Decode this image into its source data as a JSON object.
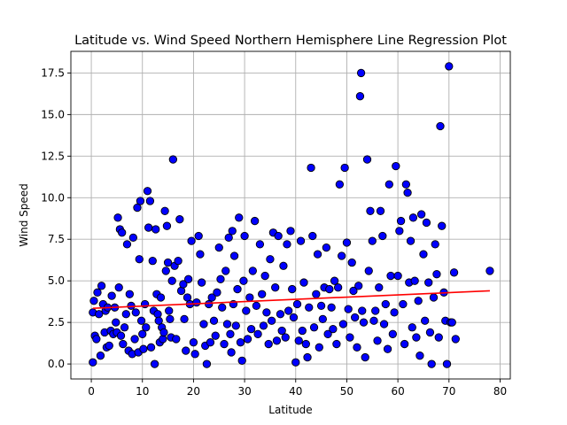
{
  "chart_data": {
    "type": "scatter",
    "title": "Latitude vs. Wind Speed Northern Hemisphere Line Regression Plot",
    "xlabel": "Latitude",
    "ylabel": "Wind Speed",
    "xlim": [
      -4,
      82
    ],
    "ylim": [
      -0.9,
      18.8
    ],
    "xticks": [
      0,
      10,
      20,
      30,
      40,
      50,
      60,
      70,
      80
    ],
    "yticks": [
      0.0,
      2.5,
      5.0,
      7.5,
      10.0,
      12.5,
      15.0,
      17.5
    ],
    "ytick_labels": [
      "0.0",
      "2.5",
      "5.0",
      "7.5",
      "10.0",
      "12.5",
      "15.0",
      "17.5"
    ],
    "grid": true,
    "marker_color": "#0000ff",
    "marker_edge": "#000000",
    "regression_color": "#ff0000",
    "regression": {
      "x": [
        0.3,
        78
      ],
      "y": [
        3.35,
        4.4
      ]
    },
    "points": [
      [
        0.3,
        0.1
      ],
      [
        0.3,
        3.1
      ],
      [
        0.5,
        3.8
      ],
      [
        0.7,
        1.7
      ],
      [
        1.0,
        1.5
      ],
      [
        1.2,
        4.3
      ],
      [
        1.5,
        3.0
      ],
      [
        1.8,
        0.5
      ],
      [
        2.0,
        4.7
      ],
      [
        2.3,
        3.6
      ],
      [
        2.6,
        1.9
      ],
      [
        2.8,
        3.2
      ],
      [
        3.0,
        1.0
      ],
      [
        3.2,
        3.4
      ],
      [
        3.5,
        1.1
      ],
      [
        3.8,
        2.0
      ],
      [
        4.0,
        4.1
      ],
      [
        4.3,
        1.8
      ],
      [
        4.6,
        3.4
      ],
      [
        4.8,
        2.5
      ],
      [
        5.0,
        1.9
      ],
      [
        5.2,
        8.8
      ],
      [
        5.4,
        4.6
      ],
      [
        5.6,
        8.1
      ],
      [
        5.8,
        1.7
      ],
      [
        6.0,
        7.9
      ],
      [
        6.2,
        1.2
      ],
      [
        6.5,
        2.2
      ],
      [
        6.8,
        3.0
      ],
      [
        7.0,
        7.2
      ],
      [
        7.3,
        0.8
      ],
      [
        7.5,
        4.2
      ],
      [
        7.8,
        3.5
      ],
      [
        8.0,
        0.6
      ],
      [
        8.2,
        7.6
      ],
      [
        8.5,
        1.5
      ],
      [
        8.7,
        3.1
      ],
      [
        9.0,
        9.4
      ],
      [
        9.2,
        0.7
      ],
      [
        9.4,
        6.3
      ],
      [
        9.6,
        9.8
      ],
      [
        9.8,
        2.6
      ],
      [
        10.0,
        1.8
      ],
      [
        10.2,
        0.9
      ],
      [
        10.5,
        3.6
      ],
      [
        10.7,
        2.2
      ],
      [
        11.0,
        10.4
      ],
      [
        11.2,
        8.2
      ],
      [
        11.5,
        9.8
      ],
      [
        11.7,
        1.0
      ],
      [
        12.0,
        6.2
      ],
      [
        12.2,
        3.2
      ],
      [
        12.4,
        0.0
      ],
      [
        12.6,
        8.1
      ],
      [
        12.8,
        4.2
      ],
      [
        13.0,
        3.0
      ],
      [
        13.2,
        2.6
      ],
      [
        13.4,
        1.3
      ],
      [
        13.6,
        4.0
      ],
      [
        13.8,
        2.2
      ],
      [
        14.0,
        1.5
      ],
      [
        14.2,
        1.9
      ],
      [
        14.4,
        9.2
      ],
      [
        14.6,
        5.6
      ],
      [
        14.8,
        8.3
      ],
      [
        15.0,
        6.1
      ],
      [
        15.2,
        3.2
      ],
      [
        15.4,
        2.7
      ],
      [
        15.6,
        1.6
      ],
      [
        15.8,
        5.0
      ],
      [
        16.0,
        12.3
      ],
      [
        16.3,
        5.9
      ],
      [
        16.6,
        1.5
      ],
      [
        17.0,
        6.2
      ],
      [
        17.3,
        8.7
      ],
      [
        17.6,
        4.4
      ],
      [
        18.0,
        4.8
      ],
      [
        18.2,
        2.7
      ],
      [
        18.5,
        0.8
      ],
      [
        18.8,
        4.0
      ],
      [
        19.0,
        5.1
      ],
      [
        19.3,
        3.6
      ],
      [
        19.6,
        7.4
      ],
      [
        20.0,
        1.3
      ],
      [
        20.3,
        0.6
      ],
      [
        20.6,
        3.7
      ],
      [
        21.0,
        7.7
      ],
      [
        21.3,
        6.6
      ],
      [
        21.6,
        4.9
      ],
      [
        22.0,
        2.4
      ],
      [
        22.3,
        1.1
      ],
      [
        22.6,
        0.0
      ],
      [
        23.0,
        3.6
      ],
      [
        23.3,
        1.3
      ],
      [
        23.6,
        4.0
      ],
      [
        24.0,
        2.6
      ],
      [
        24.3,
        1.7
      ],
      [
        24.6,
        4.3
      ],
      [
        25.0,
        7.0
      ],
      [
        25.3,
        5.1
      ],
      [
        25.6,
        3.4
      ],
      [
        26.0,
        1.2
      ],
      [
        26.3,
        5.6
      ],
      [
        26.6,
        2.4
      ],
      [
        26.9,
        7.6
      ],
      [
        27.2,
        1.8
      ],
      [
        27.4,
        0.7
      ],
      [
        27.6,
        8.0
      ],
      [
        27.8,
        3.6
      ],
      [
        28.0,
        6.5
      ],
      [
        28.3,
        2.3
      ],
      [
        28.6,
        4.5
      ],
      [
        28.9,
        8.8
      ],
      [
        29.2,
        1.3
      ],
      [
        29.5,
        0.2
      ],
      [
        29.8,
        5.0
      ],
      [
        30.0,
        7.7
      ],
      [
        30.3,
        3.2
      ],
      [
        30.6,
        1.5
      ],
      [
        31.0,
        4.0
      ],
      [
        31.3,
        2.1
      ],
      [
        31.6,
        5.6
      ],
      [
        32.0,
        8.6
      ],
      [
        32.3,
        3.5
      ],
      [
        32.6,
        1.8
      ],
      [
        33.0,
        7.2
      ],
      [
        33.4,
        4.2
      ],
      [
        33.7,
        2.3
      ],
      [
        34.0,
        5.3
      ],
      [
        34.3,
        3.1
      ],
      [
        34.7,
        1.2
      ],
      [
        35.0,
        6.3
      ],
      [
        35.3,
        2.6
      ],
      [
        35.6,
        7.9
      ],
      [
        36.0,
        4.6
      ],
      [
        36.3,
        1.4
      ],
      [
        36.6,
        7.7
      ],
      [
        37.0,
        3.0
      ],
      [
        37.3,
        2.0
      ],
      [
        37.6,
        5.9
      ],
      [
        38.0,
        1.6
      ],
      [
        38.3,
        7.2
      ],
      [
        38.6,
        3.2
      ],
      [
        39.0,
        8.0
      ],
      [
        39.3,
        4.5
      ],
      [
        39.6,
        2.8
      ],
      [
        40.0,
        0.1
      ],
      [
        40.3,
        3.6
      ],
      [
        40.6,
        1.4
      ],
      [
        41.0,
        7.4
      ],
      [
        41.3,
        2.0
      ],
      [
        41.6,
        4.9
      ],
      [
        42.0,
        1.2
      ],
      [
        42.3,
        0.4
      ],
      [
        42.6,
        3.4
      ],
      [
        43.0,
        11.8
      ],
      [
        43.3,
        7.7
      ],
      [
        43.6,
        2.2
      ],
      [
        44.0,
        4.2
      ],
      [
        44.3,
        6.6
      ],
      [
        44.6,
        1.0
      ],
      [
        45.0,
        3.5
      ],
      [
        45.3,
        2.7
      ],
      [
        45.6,
        4.6
      ],
      [
        46.0,
        7.0
      ],
      [
        46.3,
        1.8
      ],
      [
        46.6,
        4.5
      ],
      [
        47.0,
        3.4
      ],
      [
        47.3,
        2.1
      ],
      [
        47.6,
        5.0
      ],
      [
        48.0,
        1.2
      ],
      [
        48.3,
        4.6
      ],
      [
        48.6,
        10.8
      ],
      [
        49.0,
        6.5
      ],
      [
        49.3,
        2.4
      ],
      [
        49.6,
        11.8
      ],
      [
        50.0,
        7.3
      ],
      [
        50.3,
        3.3
      ],
      [
        50.6,
        1.6
      ],
      [
        51.0,
        6.1
      ],
      [
        51.3,
        4.4
      ],
      [
        51.6,
        2.8
      ],
      [
        52.0,
        1.0
      ],
      [
        52.3,
        4.7
      ],
      [
        52.6,
        16.1
      ],
      [
        52.8,
        17.5
      ],
      [
        53.0,
        3.2
      ],
      [
        53.3,
        2.5
      ],
      [
        53.6,
        0.4
      ],
      [
        54.0,
        12.3
      ],
      [
        54.3,
        5.6
      ],
      [
        54.6,
        9.2
      ],
      [
        55.0,
        7.4
      ],
      [
        55.3,
        2.6
      ],
      [
        55.6,
        3.2
      ],
      [
        56.0,
        1.4
      ],
      [
        56.3,
        4.6
      ],
      [
        56.6,
        9.2
      ],
      [
        57.0,
        7.7
      ],
      [
        57.3,
        2.4
      ],
      [
        57.6,
        3.6
      ],
      [
        58.0,
        0.9
      ],
      [
        58.3,
        10.8
      ],
      [
        58.6,
        5.3
      ],
      [
        59.0,
        1.8
      ],
      [
        59.3,
        3.1
      ],
      [
        59.6,
        11.9
      ],
      [
        60.0,
        5.3
      ],
      [
        60.3,
        8.0
      ],
      [
        60.6,
        8.6
      ],
      [
        61.0,
        3.6
      ],
      [
        61.3,
        1.2
      ],
      [
        61.6,
        10.8
      ],
      [
        61.9,
        10.3
      ],
      [
        62.2,
        4.9
      ],
      [
        62.5,
        7.4
      ],
      [
        62.8,
        2.2
      ],
      [
        63.0,
        8.8
      ],
      [
        63.3,
        5.0
      ],
      [
        63.6,
        1.6
      ],
      [
        64.0,
        3.8
      ],
      [
        64.3,
        0.5
      ],
      [
        64.6,
        9.0
      ],
      [
        65.0,
        6.6
      ],
      [
        65.3,
        2.6
      ],
      [
        65.6,
        8.5
      ],
      [
        66.0,
        4.9
      ],
      [
        66.3,
        1.9
      ],
      [
        66.6,
        0.0
      ],
      [
        67.0,
        4.0
      ],
      [
        67.3,
        7.2
      ],
      [
        67.6,
        5.4
      ],
      [
        68.0,
        1.6
      ],
      [
        68.3,
        14.3
      ],
      [
        68.6,
        8.3
      ],
      [
        69.0,
        4.3
      ],
      [
        69.3,
        2.6
      ],
      [
        69.6,
        0.0
      ],
      [
        70.0,
        17.9
      ],
      [
        70.3,
        2.5
      ],
      [
        70.6,
        2.5
      ],
      [
        71.0,
        5.5
      ],
      [
        71.3,
        1.5
      ],
      [
        78.0,
        5.6
      ]
    ]
  }
}
